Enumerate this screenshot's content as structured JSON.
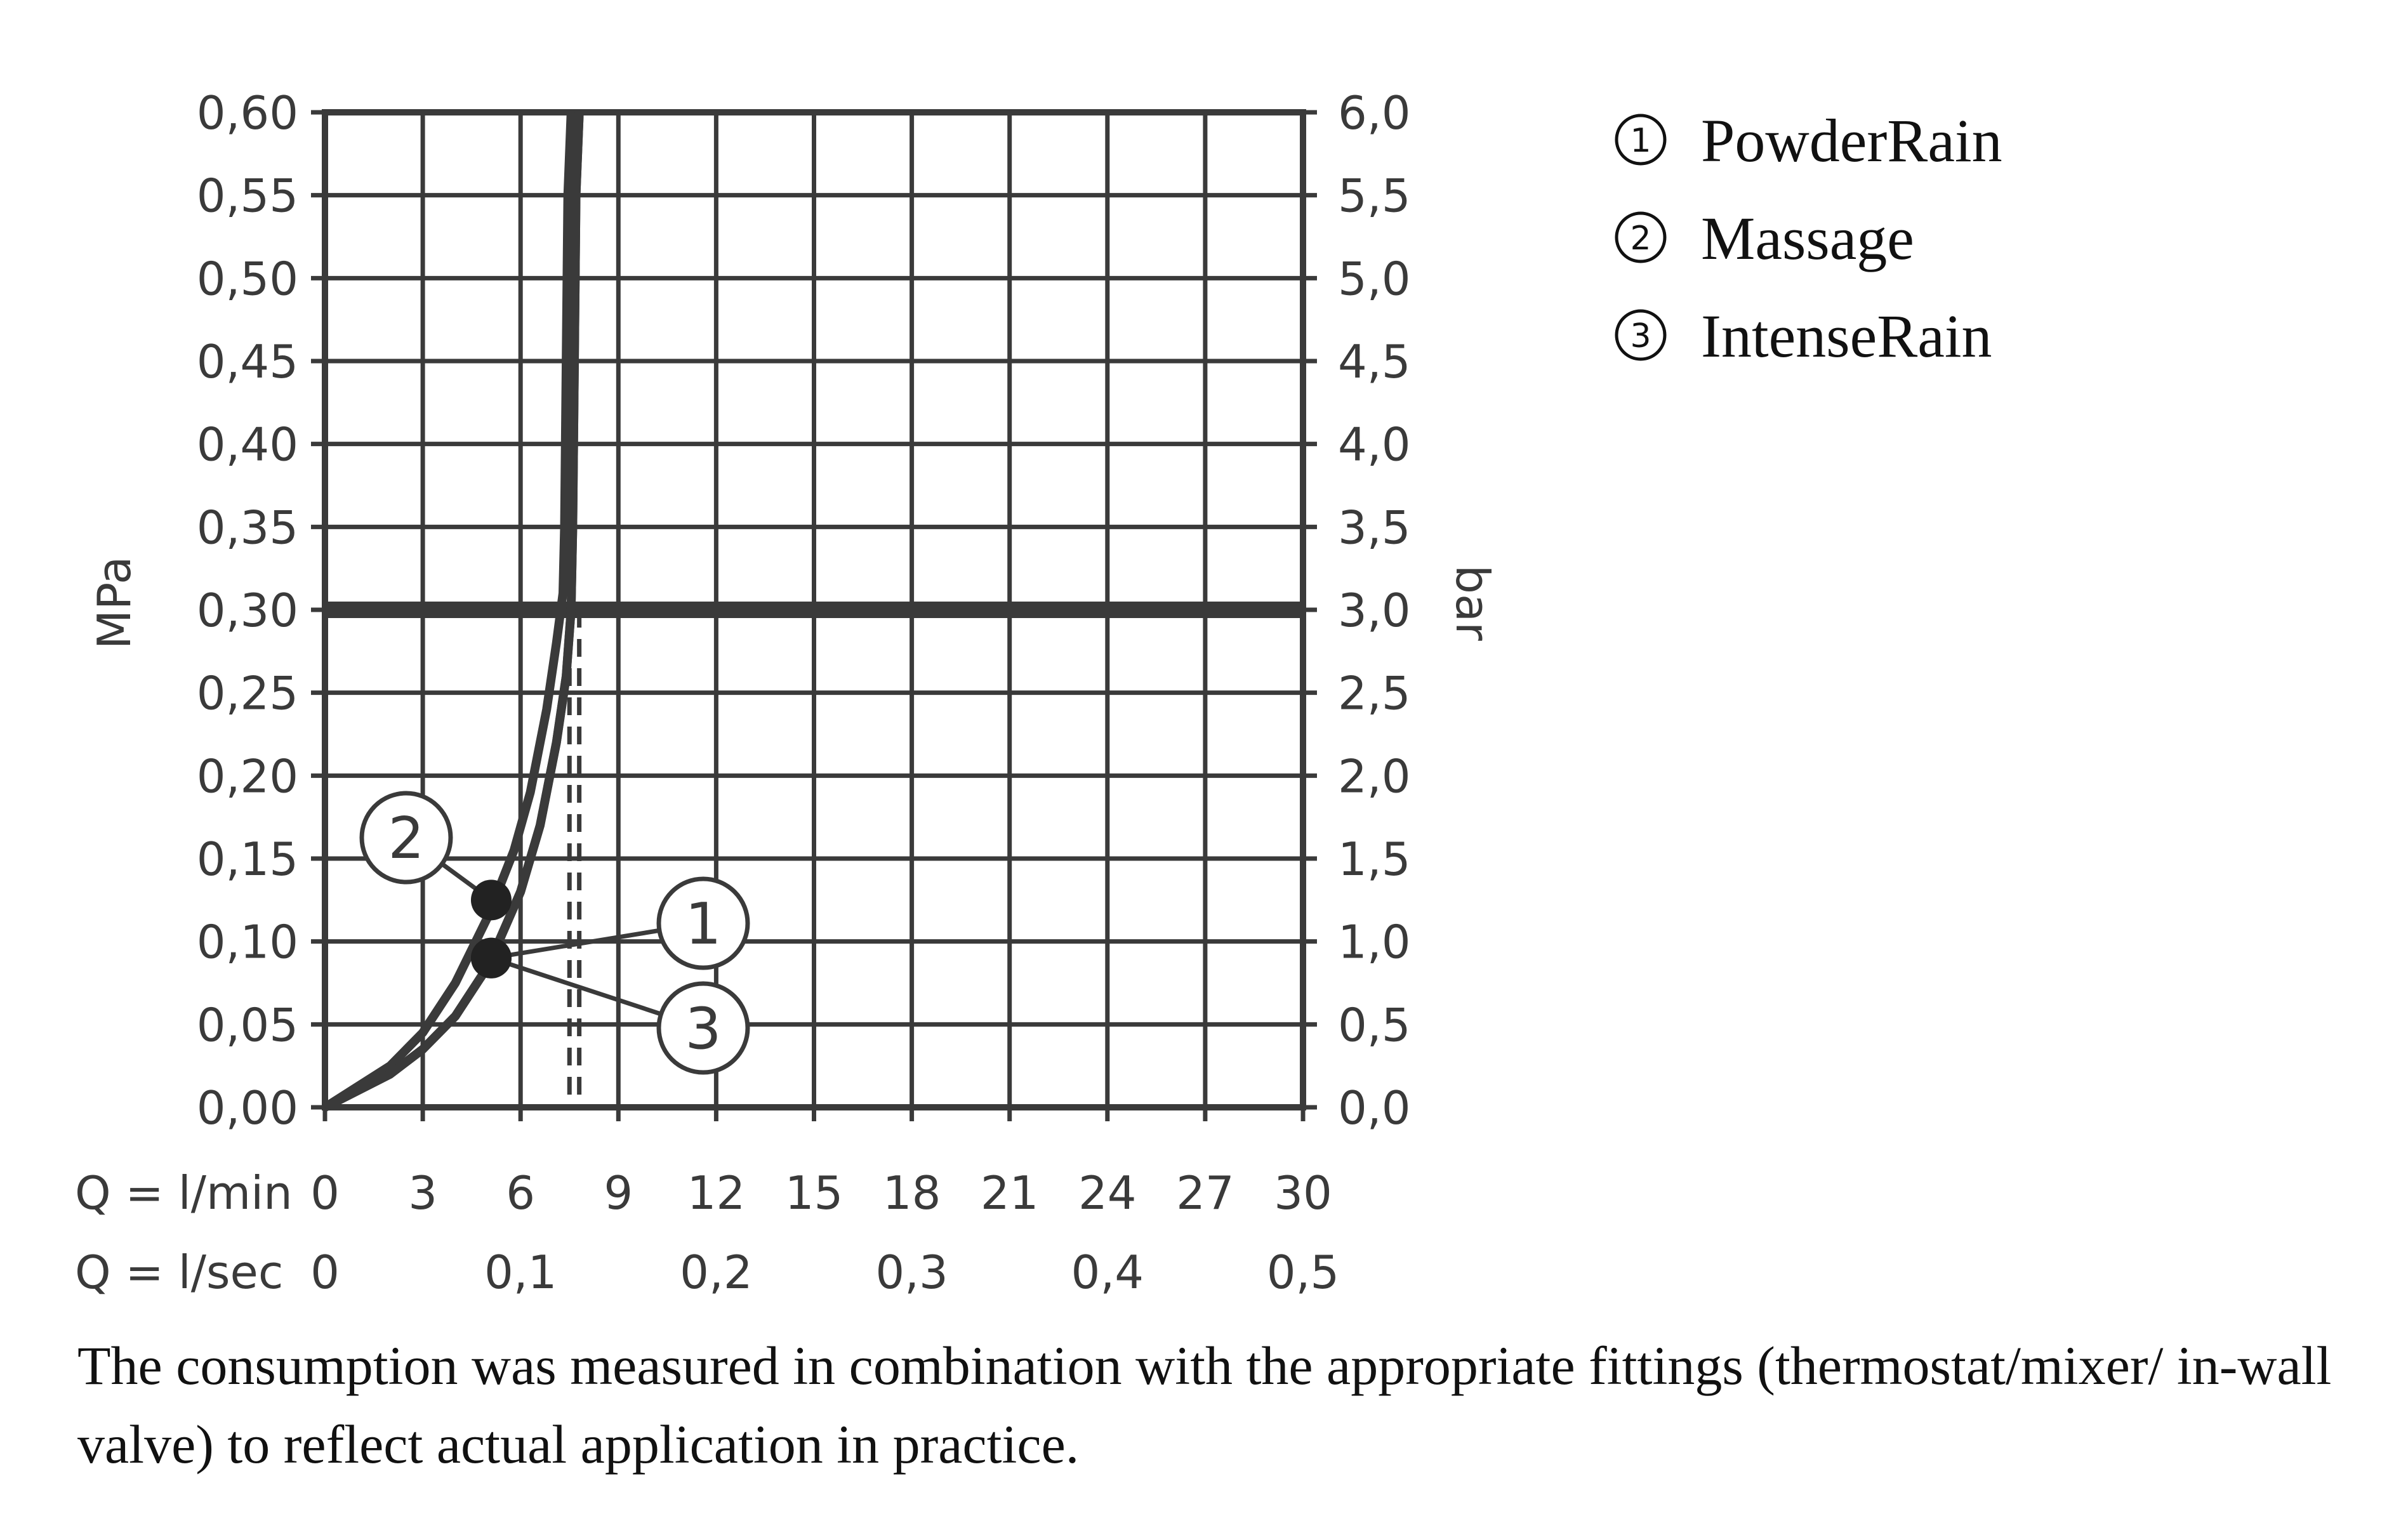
{
  "chart_data": {
    "type": "line",
    "xlabel": "Q = l/min",
    "xlabel2": "Q = l/sec",
    "ylabel_left": "MPa",
    "ylabel_right": "bar",
    "xlim": [
      0,
      30
    ],
    "ylim": [
      0,
      0.6
    ],
    "x_ticks": [
      "0",
      "3",
      "6",
      "9",
      "12",
      "15",
      "18",
      "21",
      "24",
      "27",
      "30"
    ],
    "x2_ticks": [
      {
        "q": 0,
        "label": "0"
      },
      {
        "q": 6,
        "label": "0,1"
      },
      {
        "q": 12,
        "label": "0,2"
      },
      {
        "q": 18,
        "label": "0,3"
      },
      {
        "q": 24,
        "label": "0,4"
      },
      {
        "q": 30,
        "label": "0,5"
      }
    ],
    "y_ticks_left": [
      "0,00",
      "0,05",
      "0,10",
      "0,15",
      "0,20",
      "0,25",
      "0,30",
      "0,35",
      "0,40",
      "0,45",
      "0,50",
      "0,55",
      "0,60"
    ],
    "y_ticks_right": [
      "0,0",
      "0,5",
      "1,0",
      "1,5",
      "2,0",
      "2,5",
      "3,0",
      "3,5",
      "4,0",
      "4,5",
      "5,0",
      "5,5",
      "6,0"
    ],
    "reference_pressure": 0.3,
    "series": [
      {
        "id": "1",
        "x": [
          0,
          2,
          3,
          4,
          5,
          6,
          6.6,
          7.1,
          7.4,
          7.55,
          7.6,
          7.65,
          7.7,
          7.8
        ],
        "y": [
          0,
          0.02,
          0.035,
          0.055,
          0.085,
          0.13,
          0.17,
          0.22,
          0.26,
          0.3,
          0.35,
          0.45,
          0.55,
          0.6
        ]
      },
      {
        "id": "2",
        "x": [
          0,
          2,
          3,
          4,
          5,
          5.8,
          6.3,
          6.8,
          7.1,
          7.3,
          7.35,
          7.4,
          7.45,
          7.55
        ],
        "y": [
          0,
          0.025,
          0.045,
          0.075,
          0.115,
          0.155,
          0.19,
          0.24,
          0.28,
          0.31,
          0.35,
          0.45,
          0.55,
          0.6
        ]
      },
      {
        "id": "3",
        "x": [
          0,
          2,
          3,
          4,
          5,
          6,
          6.6,
          7.1,
          7.4,
          7.55,
          7.6,
          7.65,
          7.7,
          7.8
        ],
        "y": [
          0,
          0.02,
          0.035,
          0.055,
          0.085,
          0.13,
          0.17,
          0.22,
          0.26,
          0.3,
          0.35,
          0.45,
          0.55,
          0.6
        ]
      }
    ],
    "flow_at_reference": [
      7.5,
      7.8
    ],
    "markers": [
      {
        "x": 5.1,
        "y": 0.125,
        "label": "2"
      },
      {
        "x": 5.1,
        "y": 0.09,
        "label": "1"
      },
      {
        "x": 5.1,
        "y": 0.09,
        "label": "3"
      }
    ]
  },
  "legend": [
    {
      "num": "1",
      "label": "PowderRain"
    },
    {
      "num": "2",
      "label": "Massage"
    },
    {
      "num": "3",
      "label": "IntenseRain"
    }
  ],
  "caption": "The consumption was measured in combination with the appropriate fittings (thermostat/mixer/ in-wall valve) to reflect actual application in practice."
}
